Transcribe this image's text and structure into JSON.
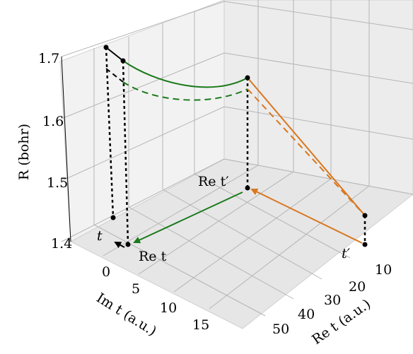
{
  "chart_data": {
    "type": "line",
    "projection": "3d",
    "xlabel": "Re t (a.u.)",
    "ylabel": "Im t (a.u.)",
    "zlabel": "R (bohr)",
    "x_ticks": [
      "10",
      "20",
      "30",
      "40",
      "50"
    ],
    "y_ticks": [
      "0",
      "5",
      "10",
      "15"
    ],
    "z_ticks": [
      "1.4",
      "1.5",
      "1.6",
      "1.7"
    ],
    "zlim": [
      1.4,
      1.72
    ],
    "grid": true,
    "annotations": {
      "t": "t",
      "t_prime": "t′",
      "re_t": "Re t",
      "re_t_prime": "Re t′"
    },
    "series": [
      {
        "color": "#1a7a1a",
        "style": "solid"
      },
      {
        "color": "#1a7a1a",
        "style": "dashed"
      },
      {
        "color": "#d9771e",
        "style": "solid"
      },
      {
        "color": "#d9771e",
        "style": "dashed"
      },
      {
        "color": "#000000",
        "style": "solid"
      },
      {
        "color": "#000000",
        "style": "dashed"
      }
    ],
    "colors": {
      "green": "#1a7a1a",
      "orange": "#d9771e",
      "black": "#000000",
      "grid": "#b0b0b0",
      "pane": "#f2f2f2"
    }
  }
}
